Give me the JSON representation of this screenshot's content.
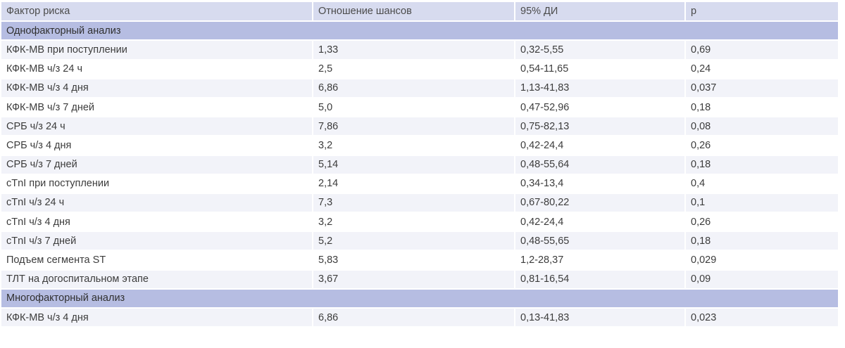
{
  "table": {
    "headers": [
      "Фактор риска",
      "Отношение шансов",
      "95% ДИ",
      "p"
    ],
    "section1": "Однофакторный анализ",
    "rows1": [
      [
        "КФК-МВ при поступлении",
        "1,33",
        "0,32-5,55",
        "0,69"
      ],
      [
        "КФК-МВ ч/з 24 ч",
        "2,5",
        "0,54-11,65",
        "0,24"
      ],
      [
        "КФК-МВ ч/з 4 дня",
        "6,86",
        "1,13-41,83",
        "0,037"
      ],
      [
        "КФК-МВ ч/з 7 дней",
        "5,0",
        "0,47-52,96",
        "0,18"
      ],
      [
        "СРБ ч/з 24 ч",
        "7,86",
        "0,75-82,13",
        "0,08"
      ],
      [
        "СРБ ч/з 4 дня",
        "3,2",
        "0,42-24,4",
        "0,26"
      ],
      [
        "СРБ ч/з 7 дней",
        "5,14",
        "0,48-55,64",
        "0,18"
      ],
      [
        "cTnI при поступлении",
        "2,14",
        "0,34-13,4",
        "0,4"
      ],
      [
        "cTnI ч/з 24 ч",
        "7,3",
        "0,67-80,22",
        "0,1"
      ],
      [
        "cTnI ч/з 4 дня",
        "3,2",
        "0,42-24,4",
        "0,26"
      ],
      [
        "cTnI ч/з 7 дней",
        "5,2",
        "0,48-55,65",
        "0,18"
      ],
      [
        "Подъем сегмента ST",
        "5,83",
        "1,2-28,37",
        "0,029"
      ],
      [
        "ТЛТ на догоспитальном этапе",
        "3,67",
        "0,81-16,54",
        "0,09"
      ]
    ],
    "section2": "Многофакторный анализ",
    "rows2": [
      [
        "КФК-МВ ч/з 4 дня",
        "6,86",
        "0,13-41,83",
        "0,023"
      ]
    ]
  },
  "colors": {
    "header_bg": "#d7dbef",
    "section_bg": "#b6bde2",
    "alt_row_bg": "#f2f3f9",
    "text": "#3c3c3c"
  }
}
